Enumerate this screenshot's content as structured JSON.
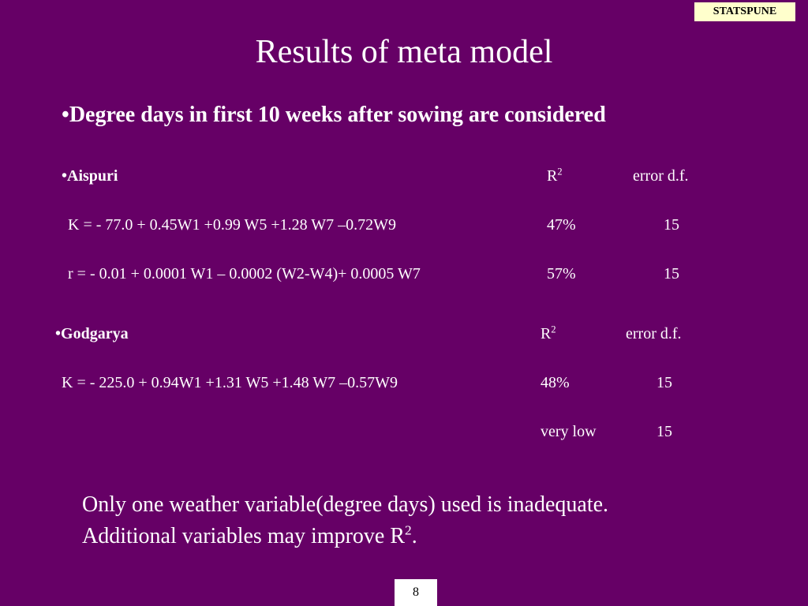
{
  "badge": "STATSPUNE",
  "title": "Results of meta model",
  "heading": {
    "bullet": "•",
    "text": "Degree days in first 10 weeks after sowing are considered"
  },
  "sections": [
    {
      "bullet": "•",
      "name": "Aispuri",
      "col_r2": "R",
      "col_r2_sup": "2",
      "col_df": "error d.f.",
      "rows": [
        {
          "equation": "K = - 77.0 + 0.45W1 +0.99 W5 +1.28 W7 –0.72W9",
          "r2": "47%",
          "df": "15"
        },
        {
          "equation": "r  =  - 0.01 + 0.0001 W1 – 0.0002 (W2-W4)+ 0.0005 W7",
          "r2": "57%",
          "df": "15"
        }
      ]
    },
    {
      "bullet": "•",
      "name": "Godgarya",
      "col_r2": "R",
      "col_r2_sup": "2",
      "col_df": "error d.f.",
      "rows": [
        {
          "equation": "K = - 225.0 + 0.94W1 +1.31 W5 +1.48 W7 –0.57W9",
          "r2": "48%",
          "df": "15"
        },
        {
          "equation": "",
          "r2": "very low",
          "df": "15"
        }
      ]
    }
  ],
  "conclusion": {
    "line1": "Only one weather variable(degree days) used is inadequate.",
    "line2_text": "Additional variables may improve R",
    "line2_sup": "2",
    "line2_end": "."
  },
  "page_number": "8",
  "colors": {
    "background": "#660066",
    "text": "#ffffff",
    "badge_background": "#ffffcc"
  }
}
